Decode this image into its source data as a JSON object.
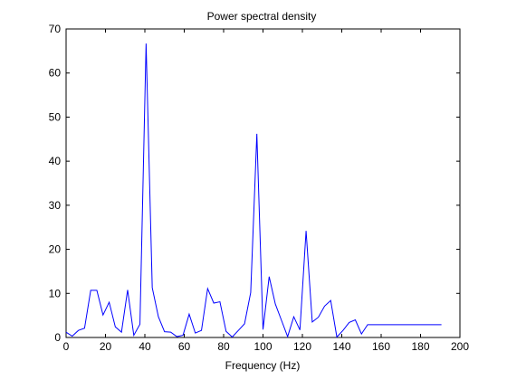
{
  "chart_data": {
    "type": "line",
    "title": "Power spectral density",
    "xlabel": "Frequency (Hz)",
    "ylabel": "",
    "xlim": [
      0,
      200
    ],
    "ylim": [
      0,
      70
    ],
    "xticks": [
      0,
      20,
      40,
      60,
      80,
      100,
      120,
      140,
      160,
      180,
      200
    ],
    "yticks": [
      0,
      10,
      20,
      30,
      40,
      50,
      60,
      70
    ],
    "grid": false,
    "legend": "none",
    "line_color": "#0000ff",
    "series": [
      {
        "x": [
          0,
          3.125,
          6.25,
          9.375,
          12.5,
          15.625,
          18.75,
          21.875,
          25,
          28.125,
          31.25,
          34.375,
          37.5,
          40.625,
          43.75,
          46.875,
          50,
          53.125,
          56.25,
          59.375,
          62.5,
          65.625,
          68.75,
          71.875,
          75,
          78.125,
          81.25,
          84.375,
          87.5,
          90.625,
          93.75,
          96.875,
          100,
          103.125,
          106.25,
          109.375,
          112.5,
          115.625,
          118.75,
          121.875,
          125,
          128.125,
          131.25,
          134.375,
          137.5,
          140.625,
          143.75,
          146.875,
          150,
          153.125,
          156.25,
          159.375,
          162.5,
          165.625,
          168.75,
          171.875,
          175,
          178.125,
          181.25,
          184.375,
          187.5,
          190.625
        ],
        "values": [
          1.2,
          0.3,
          1.6,
          2.1,
          10.7,
          10.7,
          5.1,
          8.0,
          2.4,
          1.2,
          10.8,
          0.5,
          3.0,
          66.7,
          11.3,
          4.7,
          1.3,
          1.2,
          0.2,
          0.5,
          5.3,
          1.0,
          1.6,
          11.1,
          7.8,
          8.1,
          1.4,
          0.1,
          1.6,
          3.1,
          10.2,
          46.2,
          1.8,
          13.8,
          7.6,
          3.9,
          0.2,
          4.7,
          1.7,
          24.2,
          3.5,
          4.6,
          7.1,
          8.4,
          0.1,
          1.6,
          3.4,
          4.0,
          0.8,
          2.9,
          2.9,
          2.9,
          2.9,
          2.9,
          2.9,
          2.9,
          2.9,
          2.9,
          2.9,
          2.9,
          2.9,
          2.9
        ]
      }
    ]
  }
}
